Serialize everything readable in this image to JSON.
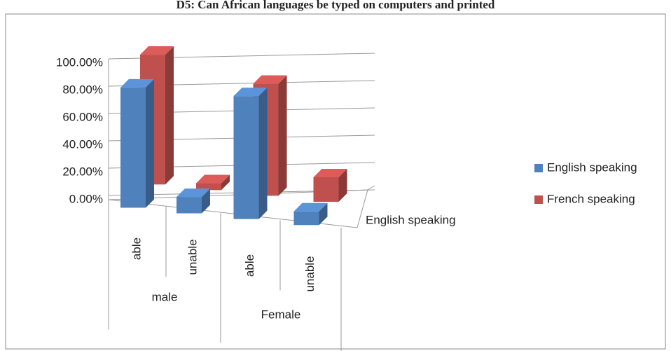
{
  "chart_data": {
    "type": "bar3d",
    "title": "D5: Can African languages be typed on computers and printed",
    "groups": [
      "male",
      "Female"
    ],
    "categories": [
      "able",
      "unable",
      "able",
      "unable"
    ],
    "depth_label": "English speaking",
    "series": [
      {
        "name": "English speaking",
        "color": "#4f81bd",
        "values": [
          88,
          12,
          90,
          10
        ]
      },
      {
        "name": "French speaking",
        "color": "#c0504d",
        "values": [
          95,
          5,
          82,
          18
        ]
      }
    ],
    "ylim": [
      0,
      100
    ],
    "yticks": [
      {
        "value": 0,
        "label": "0.00%"
      },
      {
        "value": 20,
        "label": "20.00%"
      },
      {
        "value": 40,
        "label": "40.00%"
      },
      {
        "value": 60,
        "label": "60.00%"
      },
      {
        "value": 80,
        "label": "80.00%"
      },
      {
        "value": 100,
        "label": "100.00%"
      }
    ],
    "grid": true,
    "legend": "right"
  }
}
